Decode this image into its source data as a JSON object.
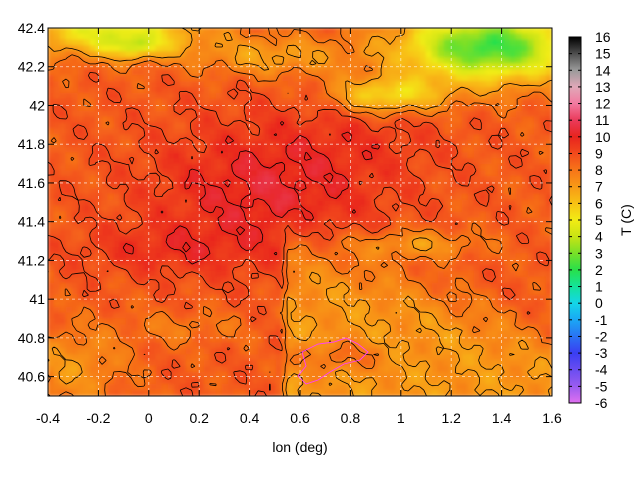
{
  "chart_data": {
    "type": "heatmap",
    "title": "",
    "xlabel": "lon (deg)",
    "ylabel": "",
    "colorbar_label": "T (C)",
    "xlim": [
      -0.4,
      1.6
    ],
    "ylim": [
      40.5,
      42.4
    ],
    "x_ticks": [
      -0.4,
      -0.2,
      0,
      0.2,
      0.4,
      0.6,
      0.8,
      1,
      1.2,
      1.4,
      1.6
    ],
    "x_tick_labels": [
      "-0.4",
      "-0.2",
      "0",
      "0.2",
      "0.4",
      "0.6",
      "0.8",
      "1",
      "1.2",
      "1.4",
      "1.6"
    ],
    "y_ticks": [
      40.6,
      40.8,
      41,
      41.2,
      41.4,
      41.6,
      41.8,
      42,
      42.2,
      42.4
    ],
    "y_tick_labels": [
      "40.6",
      "40.8",
      "41",
      "41.2",
      "41.4",
      "41.6",
      "41.8",
      "42",
      "42.2",
      "42.4"
    ],
    "colorbar_range": [
      -6,
      16
    ],
    "colorbar_ticks": [
      16,
      15,
      14,
      13,
      12,
      11,
      10,
      9,
      8,
      7,
      6,
      5,
      4,
      3,
      2,
      1,
      0,
      -1,
      -2,
      -3,
      -4,
      -5,
      -6
    ],
    "colorbar_tick_labels": [
      "16",
      "15",
      "14",
      "13",
      "12",
      "11",
      "10",
      "9",
      "8",
      "7",
      "6",
      "5",
      "4",
      "3",
      "2",
      "1",
      "0",
      "-1",
      "-2",
      "-3",
      "-4",
      "-5",
      "-6"
    ],
    "colorbar_stops": [
      {
        "value": -6,
        "color": "#e070f0"
      },
      {
        "value": -5,
        "color": "#9a5cf0"
      },
      {
        "value": -3,
        "color": "#3a3ef2"
      },
      {
        "value": -1,
        "color": "#1aa7f5"
      },
      {
        "value": 0,
        "color": "#14d6e8"
      },
      {
        "value": 1,
        "color": "#14e39a"
      },
      {
        "value": 2,
        "color": "#28e04a"
      },
      {
        "value": 3,
        "color": "#78e028"
      },
      {
        "value": 4,
        "color": "#c8e414"
      },
      {
        "value": 5,
        "color": "#f2ec14"
      },
      {
        "value": 6,
        "color": "#f8c214"
      },
      {
        "value": 7,
        "color": "#f89a16"
      },
      {
        "value": 8,
        "color": "#f77518"
      },
      {
        "value": 9,
        "color": "#f24a1c"
      },
      {
        "value": 10,
        "color": "#e8241e"
      },
      {
        "value": 11,
        "color": "#ea3a5a"
      },
      {
        "value": 12,
        "color": "#f27aa0"
      },
      {
        "value": 13,
        "color": "#e0a8b8"
      },
      {
        "value": 14,
        "color": "#9a9a9a"
      },
      {
        "value": 15,
        "color": "#4e4e4e"
      },
      {
        "value": 16,
        "color": "#000000"
      }
    ],
    "grid": true,
    "contours": true,
    "legend": "colorbar-right"
  }
}
